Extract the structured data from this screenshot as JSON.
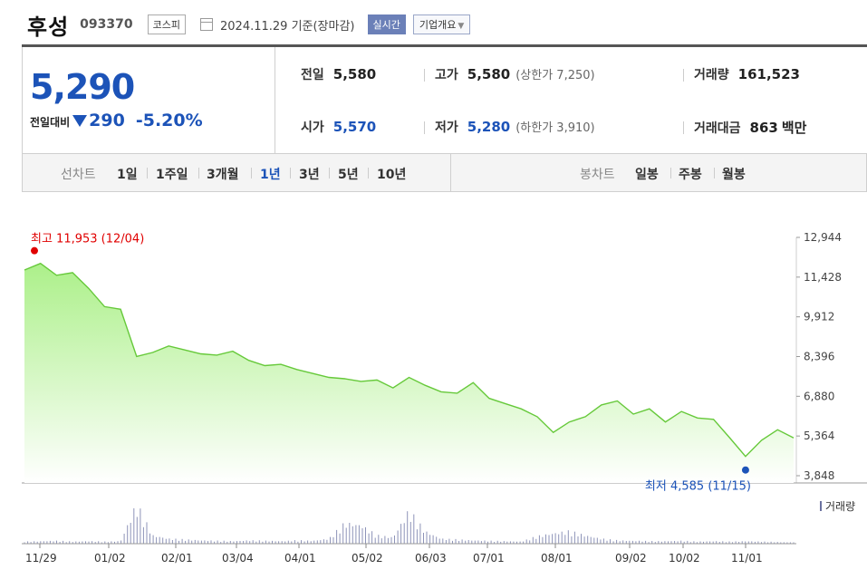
{
  "header": {
    "stock_name": "후성",
    "stock_code": "093370",
    "market": "코스피",
    "date_text": "2024.11.29 기준(장마감)",
    "realtime_label": "실시간",
    "overview_label": "기업개요"
  },
  "quote": {
    "price": "5,290",
    "change_label": "전일대비",
    "change_amount": "290",
    "change_percent": "-5.20%",
    "prev_close_label": "전일",
    "prev_close": "5,580",
    "open_label": "시가",
    "open": "5,570",
    "high_label": "고가",
    "high": "5,580",
    "upper_limit_text": "(상한가 7,250)",
    "low_label": "저가",
    "low": "5,280",
    "lower_limit_text": "(하한가 3,910)",
    "volume_label": "거래량",
    "volume": "161,523",
    "amount_label": "거래대금",
    "amount_value": "863",
    "amount_unit": "백만"
  },
  "period_tabs": {
    "label": "선차트",
    "items": [
      "1일",
      "1주일",
      "3개월",
      "1년",
      "3년",
      "5년",
      "10년"
    ],
    "active": "1년"
  },
  "candle_tabs": {
    "label": "봉차트",
    "items": [
      "일봉",
      "주봉",
      "월봉"
    ]
  },
  "colors": {
    "accent": "#1c53b8",
    "line": "#66c93a",
    "area_top": "#a8ef84",
    "high_marker": "#e00000",
    "low_marker": "#1c53b8"
  },
  "chart_data": {
    "type": "area",
    "ylim": [
      3848,
      12944
    ],
    "y_ticks": [
      "12,944",
      "11,428",
      "9,912",
      "8,396",
      "6,880",
      "5,364",
      "3,848"
    ],
    "x_ticks": [
      "11/29",
      "01/02",
      "02/01",
      "03/04",
      "04/01",
      "05/02",
      "06/03",
      "07/01",
      "08/01",
      "09/02",
      "10/02",
      "11/01"
    ],
    "high_label": "최고 11,953 (12/04)",
    "low_label": "최저 4,585 (11/15)",
    "volume_label": "거래량",
    "x": [
      "11/29",
      "12/04",
      "12/20",
      "01/02",
      "01/10",
      "01/15",
      "01/18",
      "01/25",
      "02/01",
      "02/06",
      "02/13",
      "02/20",
      "03/04",
      "03/08",
      "03/15",
      "03/22",
      "04/01",
      "04/08",
      "04/15",
      "04/22",
      "05/02",
      "05/09",
      "05/16",
      "05/23",
      "06/03",
      "06/10",
      "06/17",
      "06/24",
      "07/01",
      "07/08",
      "07/15",
      "07/22",
      "08/01",
      "08/05",
      "08/06",
      "08/13",
      "08/20",
      "09/02",
      "09/09",
      "09/20",
      "10/02",
      "10/10",
      "10/18",
      "11/01",
      "11/08",
      "11/15",
      "11/20",
      "11/27",
      "11/29"
    ],
    "close": [
      11700,
      11953,
      11500,
      11600,
      11000,
      10300,
      10200,
      8400,
      8550,
      8800,
      8650,
      8500,
      8450,
      8600,
      8250,
      8050,
      8100,
      7900,
      7750,
      7600,
      7550,
      7450,
      7500,
      7200,
      7600,
      7300,
      7050,
      7000,
      7400,
      6800,
      6600,
      6400,
      6100,
      5500,
      5900,
      6100,
      6550,
      6700,
      6200,
      6400,
      5900,
      6300,
      6050,
      6000,
      5300,
      4585,
      5200,
      5600,
      5290
    ],
    "volume_rel": [
      0.05,
      0.06,
      0.07,
      0.05,
      0.06,
      0.05,
      0.06,
      0.95,
      0.2,
      0.12,
      0.1,
      0.08,
      0.07,
      0.06,
      0.08,
      0.07,
      0.06,
      0.08,
      0.07,
      0.12,
      0.5,
      0.45,
      0.2,
      0.15,
      0.8,
      0.3,
      0.12,
      0.1,
      0.08,
      0.07,
      0.06,
      0.05,
      0.18,
      0.25,
      0.3,
      0.2,
      0.12,
      0.08,
      0.07,
      0.06,
      0.06,
      0.07,
      0.05,
      0.06,
      0.05,
      0.06,
      0.05,
      0.04,
      0.03
    ]
  }
}
